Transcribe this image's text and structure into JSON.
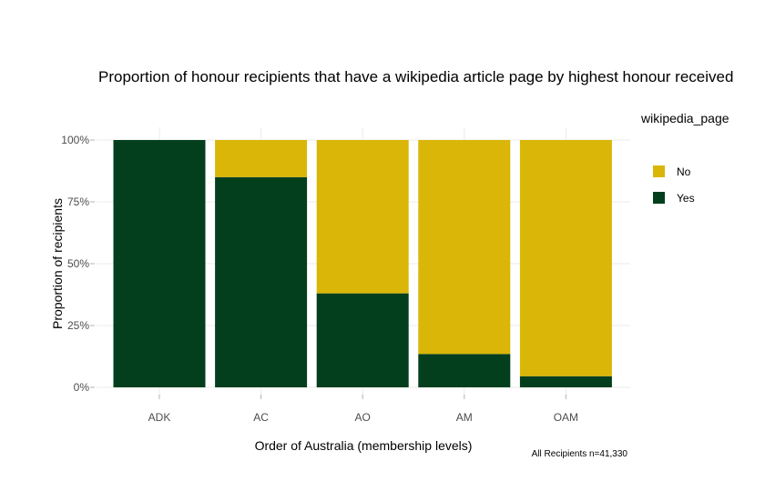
{
  "chart_data": {
    "type": "bar",
    "stacked": true,
    "title": "Proportion of honour recipients that have a wikipedia article page by highest honour received",
    "xlabel": "Order of Australia (membership levels)",
    "ylabel": "Proportion of recipients",
    "caption": "All Recipients n=41,330",
    "categories": [
      "ADK",
      "AC",
      "AO",
      "AM",
      "OAM"
    ],
    "ylim": [
      0,
      1
    ],
    "yticks": [
      0,
      0.25,
      0.5,
      0.75,
      1
    ],
    "ytick_labels": [
      "0%",
      "25%",
      "50%",
      "75%",
      "100%"
    ],
    "grid": true,
    "legend": {
      "title": "wikipedia_page",
      "position": "right",
      "entries": [
        "No",
        "Yes"
      ]
    },
    "series": [
      {
        "name": "Yes",
        "color": "#033f1c",
        "values": [
          1.0,
          0.85,
          0.38,
          0.135,
          0.045
        ]
      },
      {
        "name": "No",
        "color": "#d9b608",
        "values": [
          0.0,
          0.15,
          0.62,
          0.865,
          0.955
        ]
      }
    ]
  }
}
